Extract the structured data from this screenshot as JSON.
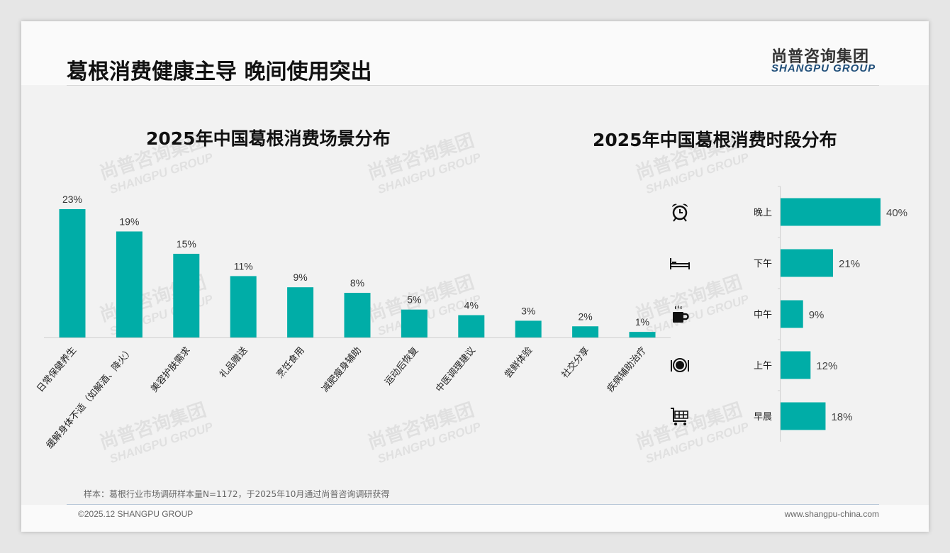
{
  "header": {
    "title": "葛根消费健康主导 晚间使用突出",
    "logo_cn": "尚普咨询集团",
    "logo_en": "SHANGPU GROUP"
  },
  "watermark": {
    "cn": "尚普咨询集团",
    "en": "SHANGPU GROUP"
  },
  "colors": {
    "bar": "#00ada7",
    "text": "#333333"
  },
  "chart_data": [
    {
      "type": "bar",
      "title": "2025年中国葛根消费场景分布",
      "categories": [
        "日常保健养生",
        "缓解身体不适（如解酒、降火）",
        "美容护肤需求",
        "礼品赠送",
        "烹饪食用",
        "减肥瘦身辅助",
        "运动后恢复",
        "中医调理建议",
        "尝鲜体验",
        "社交分享",
        "疾病辅助治疗"
      ],
      "values": [
        23,
        19,
        15,
        11,
        9,
        8,
        5,
        4,
        3,
        2,
        1
      ],
      "labels": [
        "23%",
        "19%",
        "15%",
        "11%",
        "9%",
        "8%",
        "5%",
        "4%",
        "3%",
        "2%",
        "1%"
      ],
      "ylim": [
        0,
        25
      ]
    },
    {
      "type": "bar",
      "orientation": "horizontal",
      "title": "2025年中国葛根消费时段分布",
      "categories": [
        "晚上",
        "下午",
        "中午",
        "上午",
        "早晨"
      ],
      "values": [
        40,
        21,
        9,
        12,
        18
      ],
      "labels": [
        "40%",
        "21%",
        "9%",
        "12%",
        "18%"
      ],
      "icons": [
        "alarm-clock-icon",
        "bed-icon",
        "coffee-cup-icon",
        "dinner-plate-icon",
        "shopping-cart-icon"
      ],
      "xlim": [
        0,
        45
      ]
    }
  ],
  "footer": {
    "note": "样本：葛根行业市场调研样本量N=1172，于2025年10月通过尚普咨询调研获得",
    "copyright": "©2025.12 SHANGPU GROUP",
    "url": "www.shangpu-china.com"
  }
}
